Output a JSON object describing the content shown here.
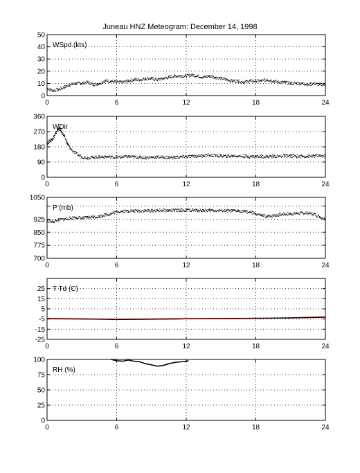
{
  "figure": {
    "title": "Juneau HNZ Meteogram:  December 14, 1998"
  },
  "chart_data": [
    {
      "type": "scatter",
      "panel_label": "WSpd (kts)",
      "xlim": [
        0,
        24
      ],
      "ylim": [
        0,
        50
      ],
      "xticks": [
        0,
        6,
        12,
        18,
        24
      ],
      "yticks": [
        0,
        10,
        20,
        30,
        40,
        50
      ],
      "grid": true,
      "series": [
        {
          "color": "#000000",
          "x": [
            0,
            0.5,
            1,
            1.5,
            2,
            2.5,
            3,
            3.5,
            4,
            4.5,
            5,
            5.5,
            6,
            6.5,
            7,
            7.5,
            8,
            8.5,
            9,
            9.5,
            10,
            10.5,
            11,
            11.5,
            12,
            12.5,
            13,
            13.5,
            14,
            14.5,
            15,
            15.5,
            16,
            16.5,
            17,
            17.5,
            18,
            18.5,
            19,
            19.5,
            20,
            20.5,
            21,
            21.5,
            22,
            22.5,
            23,
            23.5,
            24
          ],
          "y": [
            6,
            4,
            5,
            7,
            9,
            10,
            10,
            11,
            9,
            10,
            12,
            12,
            11,
            11,
            12,
            13,
            13,
            14,
            14,
            13,
            14,
            15,
            16,
            16,
            16,
            17,
            16,
            15,
            16,
            15,
            14,
            13,
            12,
            12,
            11,
            12,
            12,
            12,
            13,
            12,
            11,
            11,
            10,
            10,
            10,
            9,
            10,
            9,
            9
          ]
        }
      ]
    },
    {
      "type": "scatter",
      "panel_label": "WDir",
      "xlim": [
        0,
        24
      ],
      "ylim": [
        0,
        360
      ],
      "xticks": [
        0,
        6,
        12,
        18,
        24
      ],
      "yticks": [
        0,
        90,
        180,
        270,
        360
      ],
      "grid": true,
      "series": [
        {
          "color": "#000000",
          "x": [
            0,
            0.25,
            0.5,
            0.75,
            1,
            1.25,
            1.5,
            1.75,
            2,
            2.5,
            3,
            3.5,
            4,
            4.5,
            5,
            5.5,
            6,
            6.5,
            7,
            7.5,
            8,
            8.5,
            9,
            9.5,
            10,
            10.5,
            11,
            11.5,
            12,
            12.5,
            13,
            13.5,
            14,
            14.5,
            15,
            15.5,
            16,
            16.5,
            17,
            17.5,
            18,
            18.5,
            19,
            19.5,
            20,
            20.5,
            21,
            21.5,
            22,
            22.5,
            23,
            23.5,
            24
          ],
          "y": [
            200,
            215,
            230,
            260,
            290,
            270,
            240,
            200,
            170,
            140,
            120,
            115,
            118,
            120,
            122,
            120,
            118,
            120,
            122,
            120,
            118,
            116,
            118,
            120,
            118,
            116,
            118,
            120,
            122,
            124,
            126,
            128,
            130,
            128,
            126,
            124,
            126,
            126,
            124,
            122,
            124,
            124,
            122,
            124,
            124,
            126,
            126,
            124,
            124,
            124,
            126,
            126,
            126
          ]
        }
      ]
    },
    {
      "type": "scatter",
      "panel_label": "P (mb)",
      "xlim": [
        0,
        24
      ],
      "ylim": [
        700,
        1050
      ],
      "xticks": [
        0,
        6,
        12,
        18,
        24
      ],
      "yticks": [
        700,
        775,
        850,
        925,
        1000,
        1050
      ],
      "ytick_labels": [
        "700",
        "775",
        "850",
        "925",
        "",
        "1050"
      ],
      "grid": true,
      "series": [
        {
          "color": "#000000",
          "x": [
            0,
            0.5,
            1,
            1.5,
            2,
            2.5,
            3,
            3.5,
            4,
            4.5,
            5,
            5.5,
            6,
            6.5,
            7,
            7.5,
            8,
            8.5,
            9,
            9.5,
            10,
            10.5,
            11,
            11.5,
            12,
            12.5,
            13,
            13.5,
            14,
            14.5,
            15,
            15.5,
            16,
            16.5,
            17,
            17.5,
            18,
            18.5,
            19,
            19.5,
            20,
            20.5,
            21,
            21.5,
            22,
            22.5,
            23,
            23.5,
            24
          ],
          "y": [
            915,
            910,
            920,
            925,
            930,
            935,
            930,
            935,
            938,
            940,
            950,
            955,
            968,
            970,
            972,
            972,
            973,
            973,
            974,
            974,
            975,
            975,
            975,
            976,
            976,
            976,
            975,
            975,
            975,
            974,
            974,
            973,
            972,
            972,
            970,
            965,
            955,
            945,
            940,
            945,
            950,
            955,
            955,
            958,
            960,
            958,
            955,
            940,
            925
          ]
        }
      ]
    },
    {
      "type": "line",
      "panel_label": "T Td (C)",
      "xlim": [
        0,
        24
      ],
      "ylim": [
        -25,
        35
      ],
      "xticks": [
        0,
        6,
        12,
        18,
        24
      ],
      "yticks": [
        -25,
        -15,
        -5,
        5,
        15,
        25
      ],
      "grid": true,
      "series": [
        {
          "color": "#cc0000",
          "x": [
            0,
            3,
            6,
            9,
            12,
            15,
            18,
            21,
            24
          ],
          "y": [
            -4.5,
            -4.8,
            -5.2,
            -5.0,
            -4.7,
            -4.5,
            -4.3,
            -3.8,
            -3.0
          ]
        },
        {
          "color": "#000000",
          "x": [
            0,
            3,
            6,
            9,
            12,
            15,
            18,
            21,
            24
          ],
          "y": [
            -4.8,
            -5.0,
            -5.5,
            -5.3,
            -4.9,
            -4.7,
            -4.5,
            -4.0,
            -3.3
          ]
        }
      ]
    },
    {
      "type": "line",
      "panel_label": "RH (%)",
      "xlim": [
        0,
        24
      ],
      "ylim": [
        0,
        100
      ],
      "xticks": [
        0,
        6,
        12,
        18,
        24
      ],
      "yticks": [
        0,
        25,
        50,
        75,
        100
      ],
      "grid": true,
      "series": [
        {
          "color": "#000000",
          "x": [
            5.5,
            6,
            6.5,
            7,
            7.5,
            8,
            8.5,
            9,
            9.5,
            10,
            10.5,
            11,
            11.5,
            12,
            12.2
          ],
          "y": [
            100,
            98,
            97,
            99,
            97,
            96,
            93,
            91,
            89,
            90,
            93,
            95,
            96,
            97,
            98
          ]
        }
      ]
    }
  ]
}
